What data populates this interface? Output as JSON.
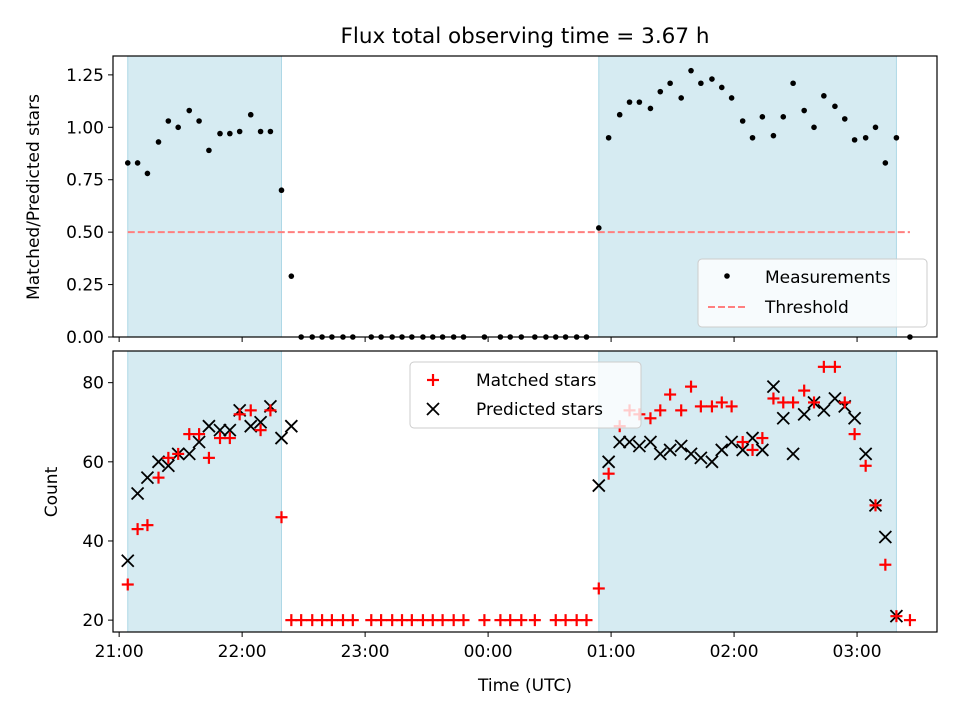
{
  "figure": {
    "title": "Flux total observing time = 3.67 h",
    "xlabel": "Time (UTC)",
    "x_tick_labels": [
      "21:00",
      "22:00",
      "23:00",
      "00:00",
      "01:00",
      "02:00",
      "03:00"
    ],
    "shade_color": "#add8e6",
    "x_axis_range_hours": [
      20.95,
      27.65
    ],
    "observing_windows_hours": [
      [
        21.07,
        22.32
      ],
      [
        24.9,
        27.32
      ]
    ]
  },
  "chart_data": [
    {
      "type": "scatter",
      "ylabel": "Matched/Predicted stars",
      "ylim": [
        0,
        1.34
      ],
      "y_tick_labels": [
        "0.00",
        "0.25",
        "0.50",
        "0.75",
        "1.00",
        "1.25"
      ],
      "y_ticks": [
        0,
        0.25,
        0.5,
        0.75,
        1.0,
        1.25
      ],
      "legend": {
        "placement": "lower-right",
        "entries": [
          "Measurements",
          "Threshold"
        ]
      },
      "threshold": {
        "name": "Threshold",
        "y": 0.5,
        "x_range": [
          21.07,
          27.43
        ],
        "color": "#ff7f7f",
        "style": "dashed"
      },
      "series": [
        {
          "name": "Measurements",
          "color": "#000000",
          "marker": "dot",
          "points": [
            [
              21.07,
              0.83
            ],
            [
              21.15,
              0.83
            ],
            [
              21.23,
              0.78
            ],
            [
              21.32,
              0.93
            ],
            [
              21.4,
              1.03
            ],
            [
              21.48,
              1.0
            ],
            [
              21.57,
              1.08
            ],
            [
              21.65,
              1.03
            ],
            [
              21.73,
              0.89
            ],
            [
              21.82,
              0.97
            ],
            [
              21.9,
              0.97
            ],
            [
              21.98,
              0.98
            ],
            [
              22.07,
              1.06
            ],
            [
              22.15,
              0.98
            ],
            [
              22.23,
              0.98
            ],
            [
              22.32,
              0.7
            ],
            [
              22.4,
              0.29
            ],
            [
              22.48,
              0.0
            ],
            [
              22.57,
              0.0
            ],
            [
              22.65,
              0.0
            ],
            [
              22.73,
              0.0
            ],
            [
              22.82,
              0.0
            ],
            [
              22.9,
              0.0
            ],
            [
              23.05,
              0.0
            ],
            [
              23.13,
              0.0
            ],
            [
              23.22,
              0.0
            ],
            [
              23.3,
              0.0
            ],
            [
              23.38,
              0.0
            ],
            [
              23.47,
              0.0
            ],
            [
              23.55,
              0.0
            ],
            [
              23.63,
              0.0
            ],
            [
              23.72,
              0.0
            ],
            [
              23.8,
              0.0
            ],
            [
              23.97,
              0.0
            ],
            [
              24.1,
              0.0
            ],
            [
              24.18,
              0.0
            ],
            [
              24.27,
              0.0
            ],
            [
              24.38,
              0.0
            ],
            [
              24.47,
              0.0
            ],
            [
              24.55,
              0.0
            ],
            [
              24.63,
              0.0
            ],
            [
              24.72,
              0.0
            ],
            [
              24.8,
              0.0
            ],
            [
              24.9,
              0.52
            ],
            [
              24.98,
              0.95
            ],
            [
              25.07,
              1.06
            ],
            [
              25.15,
              1.12
            ],
            [
              25.23,
              1.12
            ],
            [
              25.32,
              1.09
            ],
            [
              25.4,
              1.17
            ],
            [
              25.48,
              1.21
            ],
            [
              25.57,
              1.14
            ],
            [
              25.65,
              1.27
            ],
            [
              25.73,
              1.21
            ],
            [
              25.82,
              1.23
            ],
            [
              25.9,
              1.19
            ],
            [
              25.98,
              1.14
            ],
            [
              26.07,
              1.03
            ],
            [
              26.15,
              0.95
            ],
            [
              26.23,
              1.05
            ],
            [
              26.32,
              0.96
            ],
            [
              26.4,
              1.05
            ],
            [
              26.48,
              1.21
            ],
            [
              26.57,
              1.08
            ],
            [
              26.65,
              1.0
            ],
            [
              26.73,
              1.15
            ],
            [
              26.82,
              1.1
            ],
            [
              26.9,
              1.04
            ],
            [
              26.98,
              0.94
            ],
            [
              27.07,
              0.95
            ],
            [
              27.15,
              1.0
            ],
            [
              27.23,
              0.83
            ],
            [
              27.32,
              0.95
            ],
            [
              27.43,
              0.0
            ]
          ]
        }
      ]
    },
    {
      "type": "scatter",
      "ylabel": "Count",
      "ylim": [
        17,
        88
      ],
      "y_tick_labels": [
        "20",
        "40",
        "60",
        "80"
      ],
      "y_ticks": [
        20,
        40,
        60,
        80
      ],
      "legend": {
        "placement": "top-center",
        "entries": [
          "Matched stars",
          "Predicted stars"
        ]
      },
      "series": [
        {
          "name": "Matched stars",
          "color": "#ff0000",
          "marker": "plus",
          "points": [
            [
              21.07,
              29
            ],
            [
              21.15,
              43
            ],
            [
              21.23,
              44
            ],
            [
              21.32,
              56
            ],
            [
              21.4,
              61
            ],
            [
              21.48,
              62
            ],
            [
              21.57,
              67
            ],
            [
              21.65,
              67
            ],
            [
              21.73,
              61
            ],
            [
              21.82,
              66
            ],
            [
              21.9,
              66
            ],
            [
              21.98,
              72
            ],
            [
              22.07,
              73
            ],
            [
              22.15,
              68
            ],
            [
              22.23,
              73
            ],
            [
              22.32,
              46
            ],
            [
              22.4,
              20
            ],
            [
              22.48,
              20
            ],
            [
              22.57,
              20
            ],
            [
              22.65,
              20
            ],
            [
              22.73,
              20
            ],
            [
              22.82,
              20
            ],
            [
              22.9,
              20
            ],
            [
              23.05,
              20
            ],
            [
              23.13,
              20
            ],
            [
              23.22,
              20
            ],
            [
              23.3,
              20
            ],
            [
              23.38,
              20
            ],
            [
              23.47,
              20
            ],
            [
              23.55,
              20
            ],
            [
              23.63,
              20
            ],
            [
              23.72,
              20
            ],
            [
              23.8,
              20
            ],
            [
              23.97,
              20
            ],
            [
              24.1,
              20
            ],
            [
              24.18,
              20
            ],
            [
              24.27,
              20
            ],
            [
              24.38,
              20
            ],
            [
              24.55,
              20
            ],
            [
              24.63,
              20
            ],
            [
              24.72,
              20
            ],
            [
              24.8,
              20
            ],
            [
              24.9,
              28
            ],
            [
              24.98,
              57
            ],
            [
              25.07,
              69
            ],
            [
              25.15,
              73
            ],
            [
              25.23,
              72
            ],
            [
              25.32,
              71
            ],
            [
              25.4,
              73
            ],
            [
              25.48,
              77
            ],
            [
              25.57,
              73
            ],
            [
              25.65,
              79
            ],
            [
              25.73,
              74
            ],
            [
              25.82,
              74
            ],
            [
              25.9,
              75
            ],
            [
              25.98,
              74
            ],
            [
              26.07,
              65
            ],
            [
              26.15,
              63
            ],
            [
              26.23,
              66
            ],
            [
              26.32,
              76
            ],
            [
              26.4,
              75
            ],
            [
              26.48,
              75
            ],
            [
              26.57,
              78
            ],
            [
              26.65,
              75
            ],
            [
              26.73,
              84
            ],
            [
              26.82,
              84
            ],
            [
              26.9,
              75
            ],
            [
              26.98,
              67
            ],
            [
              27.07,
              59
            ],
            [
              27.15,
              49
            ],
            [
              27.23,
              34
            ],
            [
              27.32,
              21
            ],
            [
              27.43,
              20
            ]
          ]
        },
        {
          "name": "Predicted stars",
          "color": "#000000",
          "marker": "x",
          "points": [
            [
              21.07,
              35
            ],
            [
              21.15,
              52
            ],
            [
              21.23,
              56
            ],
            [
              21.32,
              60
            ],
            [
              21.4,
              59
            ],
            [
              21.48,
              62
            ],
            [
              21.57,
              62
            ],
            [
              21.65,
              65
            ],
            [
              21.73,
              69
            ],
            [
              21.82,
              68
            ],
            [
              21.9,
              68
            ],
            [
              21.98,
              73
            ],
            [
              22.07,
              69
            ],
            [
              22.15,
              70
            ],
            [
              22.23,
              74
            ],
            [
              22.32,
              66
            ],
            [
              22.4,
              69
            ],
            [
              24.9,
              54
            ],
            [
              24.98,
              60
            ],
            [
              25.07,
              65
            ],
            [
              25.15,
              65
            ],
            [
              25.23,
              64
            ],
            [
              25.32,
              65
            ],
            [
              25.4,
              62
            ],
            [
              25.48,
              63
            ],
            [
              25.57,
              64
            ],
            [
              25.65,
              62
            ],
            [
              25.73,
              61
            ],
            [
              25.82,
              60
            ],
            [
              25.9,
              63
            ],
            [
              25.98,
              65
            ],
            [
              26.07,
              63
            ],
            [
              26.15,
              66
            ],
            [
              26.23,
              63
            ],
            [
              26.32,
              79
            ],
            [
              26.4,
              71
            ],
            [
              26.48,
              62
            ],
            [
              26.57,
              72
            ],
            [
              26.65,
              75
            ],
            [
              26.73,
              73
            ],
            [
              26.82,
              76
            ],
            [
              26.9,
              74
            ],
            [
              26.98,
              71
            ],
            [
              27.07,
              62
            ],
            [
              27.15,
              49
            ],
            [
              27.23,
              41
            ],
            [
              27.32,
              21
            ]
          ]
        }
      ]
    }
  ]
}
